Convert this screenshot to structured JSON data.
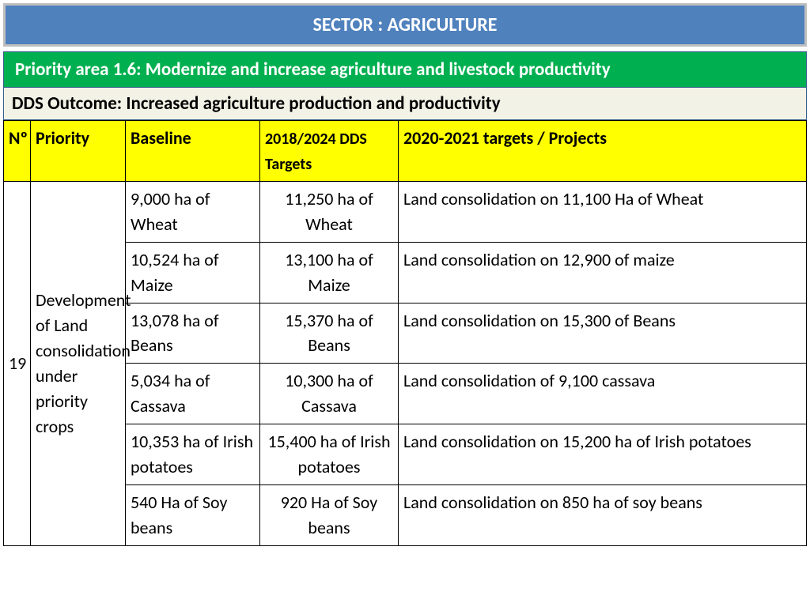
{
  "sector_header": "SECTOR : AGRICULTURE",
  "priority_header": "Priority area 1.6:  Modernize and increase agriculture and livestock productivity",
  "outcome_header": "DDS Outcome: Increased agriculture  production and productivity",
  "colors": {
    "sector_bg": "#4f81bd",
    "sector_border": "#bfbfbf",
    "priority_bg": "#00b050",
    "priority_border": "#385d8a",
    "outcome_bg": "#f2f2e6",
    "header_row_bg": "#ffff00",
    "cell_border": "#000000",
    "text": "#000000",
    "header_text": "#ffffff"
  },
  "table": {
    "columns": [
      "Nº",
      "Priority",
      "Baseline",
      "2018/2024 DDS Targets",
      " 2020-2021 targets / Projects"
    ],
    "number": "19",
    "priority": "Development of Land consolidation under priority crops",
    "rows": [
      {
        "baseline": " 9,000 ha of Wheat",
        "target": "11,250 ha of Wheat",
        "project": "Land consolidation on 11,100 Ha of Wheat"
      },
      {
        "baseline": "10,524 ha of Maize",
        "target": "13,100 ha of Maize",
        "project": "Land consolidation on 12,900 of maize"
      },
      {
        "baseline": " 13,078 ha of Beans",
        "target": "15,370 ha of Beans",
        "project": "Land consolidation on 15,300 of Beans"
      },
      {
        "baseline": "  5,034 ha  of Cassava ",
        "target": "10,300 ha  of Cassava",
        "project": "Land consolidation of 9,100 cassava"
      },
      {
        "baseline": " 10,353 ha of Irish potatoes",
        "target": "15,400 ha of  Irish potatoes",
        "project": "Land consolidation on 15,200 ha of Irish potatoes"
      },
      {
        "baseline": "540  Ha of Soy beans",
        "target": "920 Ha of Soy beans",
        "project": "Land consolidation on 850 ha of soy beans"
      }
    ]
  }
}
